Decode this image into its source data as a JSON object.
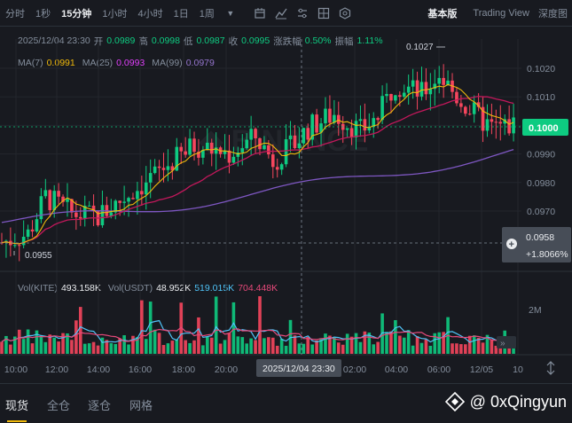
{
  "toolbar": {
    "intervals": [
      "分时",
      "1秒",
      "15分钟",
      "1小时",
      "4小时",
      "1日",
      "1周"
    ],
    "active_interval": "15分钟",
    "more_icon": "chevron-down-icon",
    "tools": [
      "candle-type-icon",
      "indicator-icon",
      "settings-icon",
      "layout-icon",
      "target-icon"
    ],
    "views": [
      "基本版",
      "Trading View",
      "深度图"
    ],
    "active_view": "基本版"
  },
  "ohlc": {
    "datetime": "2025/12/04 23:30",
    "open_label": "开",
    "open": "0.0989",
    "high_label": "高",
    "high": "0.0998",
    "low_label": "低",
    "low": "0.0987",
    "close_label": "收",
    "close": "0.0995",
    "change_label": "涨跌幅",
    "change": "0.50%",
    "amplitude_label": "振幅",
    "amplitude": "1.11%"
  },
  "ma": {
    "ma7_label": "MA(7)",
    "ma7": "0.0991",
    "ma7_color": "#f0b90b",
    "ma25_label": "MA(25)",
    "ma25": "0.0993",
    "ma25_color": "#e040fb",
    "ma99_label": "MA(99)",
    "ma99": "0.0979",
    "ma99_color": "#7e57c2"
  },
  "vol": {
    "kite_label": "Vol(KITE)",
    "kite": "493.158K",
    "usdt_label": "Vol(USDT)",
    "usdt": "48.952K",
    "v1": "519.015K",
    "v1_color": "#4fc3f7",
    "v2": "704.448K",
    "v2_color": "#e6497a",
    "axis_label": "2M"
  },
  "price_axis": [
    "0.1020",
    "0.1010",
    "0.1000",
    "0.0990",
    "0.0980",
    "0.0970"
  ],
  "current_price": "0.1000",
  "crosshair_price": "0.0958",
  "crosshair_change": "+1.8066%",
  "high_marker": "0.1027",
  "low_marker": "0.0955",
  "time_axis": [
    "10:00",
    "12:00",
    "14:00",
    "16:00",
    "18:00",
    "20:00",
    "02:00",
    "04:00",
    "06:00",
    "12/05",
    "10"
  ],
  "crosshair_time": "2025/12/04 23:30",
  "watermark": {
    "text": "@ 0xQingyun",
    "icon": "binance-square-icon"
  },
  "bottom_tabs": [
    "现货",
    "全仓",
    "逐仓",
    "网格"
  ],
  "active_bottom_tab": "现货",
  "colors": {
    "up": "#0ecb81",
    "down": "#f6465d",
    "bg": "#181a20",
    "accent": "#f0b90b"
  }
}
